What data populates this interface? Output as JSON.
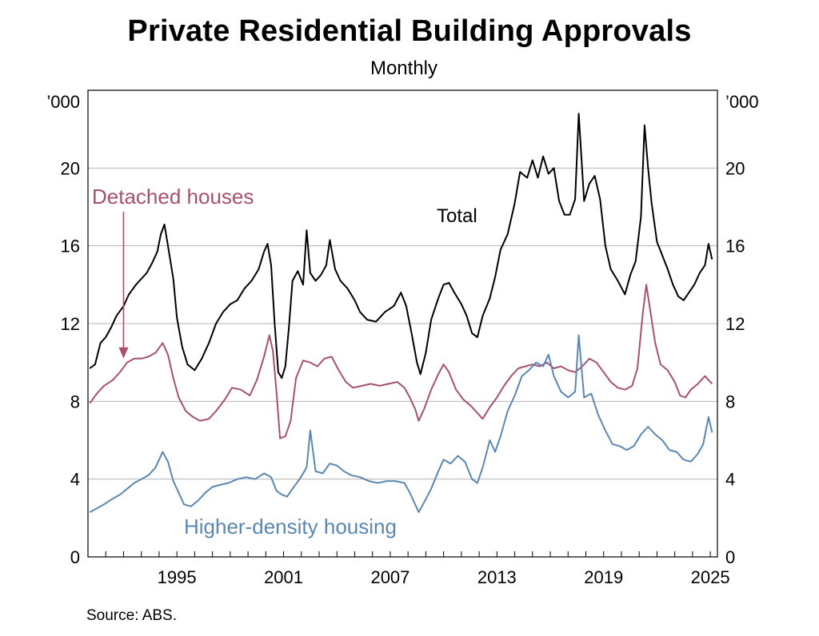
{
  "chart_data": {
    "type": "line",
    "title": "Private Residential Building Approvals",
    "subtitle": "Monthly",
    "unit_left": "’000",
    "unit_right": "’000",
    "source": "Source:   ABS.",
    "x_range": [
      1990.0,
      2025.4
    ],
    "x_ticks": [
      "1995",
      "2001",
      "2007",
      "2013",
      "2019",
      "2025"
    ],
    "ylim": [
      0,
      24
    ],
    "y_ticks": [
      0,
      4,
      8,
      12,
      16,
      20
    ],
    "grid": true,
    "legend": "inline labels",
    "annotations": [
      {
        "text": "Detached houses",
        "series": "Detached houses",
        "arrow_to": [
          1992.0,
          10.2
        ]
      },
      {
        "text": "Total",
        "series": "Total"
      },
      {
        "text": "Higher-density housing",
        "series": "Higher-density housing"
      }
    ],
    "series": [
      {
        "name": "Total",
        "color": "#000000",
        "points": [
          [
            1990.1,
            9.7
          ],
          [
            1990.4,
            9.9
          ],
          [
            1990.7,
            11.0
          ],
          [
            1991.0,
            11.3
          ],
          [
            1991.3,
            11.8
          ],
          [
            1991.6,
            12.4
          ],
          [
            1992.0,
            12.9
          ],
          [
            1992.3,
            13.5
          ],
          [
            1992.7,
            14.0
          ],
          [
            1993.0,
            14.3
          ],
          [
            1993.3,
            14.6
          ],
          [
            1993.6,
            15.1
          ],
          [
            1993.9,
            15.7
          ],
          [
            1994.1,
            16.6
          ],
          [
            1994.3,
            17.1
          ],
          [
            1994.5,
            16.0
          ],
          [
            1994.8,
            14.3
          ],
          [
            1995.0,
            12.3
          ],
          [
            1995.3,
            10.8
          ],
          [
            1995.6,
            9.9
          ],
          [
            1996.0,
            9.6
          ],
          [
            1996.4,
            10.2
          ],
          [
            1996.8,
            11.0
          ],
          [
            1997.2,
            12.0
          ],
          [
            1997.6,
            12.6
          ],
          [
            1998.0,
            13.0
          ],
          [
            1998.4,
            13.2
          ],
          [
            1998.8,
            13.8
          ],
          [
            1999.2,
            14.2
          ],
          [
            1999.6,
            14.8
          ],
          [
            1999.9,
            15.7
          ],
          [
            2000.1,
            16.1
          ],
          [
            2000.3,
            15.0
          ],
          [
            2000.5,
            12.0
          ],
          [
            2000.7,
            9.5
          ],
          [
            2000.9,
            9.2
          ],
          [
            2001.1,
            9.8
          ],
          [
            2001.3,
            11.8
          ],
          [
            2001.5,
            14.2
          ],
          [
            2001.8,
            14.7
          ],
          [
            2002.1,
            14.0
          ],
          [
            2002.3,
            16.8
          ],
          [
            2002.5,
            14.6
          ],
          [
            2002.8,
            14.2
          ],
          [
            2003.1,
            14.5
          ],
          [
            2003.4,
            15.0
          ],
          [
            2003.6,
            16.3
          ],
          [
            2003.9,
            14.8
          ],
          [
            2004.2,
            14.2
          ],
          [
            2004.6,
            13.8
          ],
          [
            2005.0,
            13.2
          ],
          [
            2005.3,
            12.6
          ],
          [
            2005.7,
            12.2
          ],
          [
            2006.2,
            12.1
          ],
          [
            2006.7,
            12.6
          ],
          [
            2007.2,
            12.9
          ],
          [
            2007.6,
            13.6
          ],
          [
            2007.9,
            12.9
          ],
          [
            2008.2,
            11.5
          ],
          [
            2008.5,
            10.0
          ],
          [
            2008.7,
            9.4
          ],
          [
            2009.0,
            10.5
          ],
          [
            2009.3,
            12.2
          ],
          [
            2009.7,
            13.3
          ],
          [
            2010.0,
            14.0
          ],
          [
            2010.3,
            14.1
          ],
          [
            2010.6,
            13.6
          ],
          [
            2011.0,
            13.0
          ],
          [
            2011.3,
            12.4
          ],
          [
            2011.6,
            11.5
          ],
          [
            2011.9,
            11.3
          ],
          [
            2012.2,
            12.4
          ],
          [
            2012.6,
            13.3
          ],
          [
            2012.9,
            14.4
          ],
          [
            2013.2,
            15.8
          ],
          [
            2013.6,
            16.6
          ],
          [
            2014.0,
            18.2
          ],
          [
            2014.3,
            19.8
          ],
          [
            2014.7,
            19.5
          ],
          [
            2015.0,
            20.4
          ],
          [
            2015.3,
            19.5
          ],
          [
            2015.6,
            20.6
          ],
          [
            2015.9,
            19.7
          ],
          [
            2016.2,
            20.0
          ],
          [
            2016.5,
            18.3
          ],
          [
            2016.8,
            17.6
          ],
          [
            2017.1,
            17.6
          ],
          [
            2017.4,
            18.4
          ],
          [
            2017.6,
            22.8
          ],
          [
            2017.9,
            18.3
          ],
          [
            2018.2,
            19.2
          ],
          [
            2018.5,
            19.6
          ],
          [
            2018.8,
            18.4
          ],
          [
            2019.1,
            16.0
          ],
          [
            2019.4,
            14.8
          ],
          [
            2019.8,
            14.2
          ],
          [
            2020.2,
            13.5
          ],
          [
            2020.5,
            14.5
          ],
          [
            2020.8,
            15.2
          ],
          [
            2021.1,
            17.5
          ],
          [
            2021.3,
            22.2
          ],
          [
            2021.5,
            20.0
          ],
          [
            2021.7,
            18.2
          ],
          [
            2022.0,
            16.2
          ],
          [
            2022.3,
            15.5
          ],
          [
            2022.6,
            14.8
          ],
          [
            2022.9,
            14.0
          ],
          [
            2023.2,
            13.4
          ],
          [
            2023.5,
            13.2
          ],
          [
            2023.8,
            13.6
          ],
          [
            2024.1,
            14.0
          ],
          [
            2024.4,
            14.6
          ],
          [
            2024.7,
            15.0
          ],
          [
            2024.9,
            16.1
          ],
          [
            2025.1,
            15.3
          ]
        ]
      },
      {
        "name": "Detached houses",
        "color": "#a8516e",
        "points": [
          [
            1990.1,
            7.9
          ],
          [
            1990.5,
            8.4
          ],
          [
            1990.9,
            8.8
          ],
          [
            1991.4,
            9.1
          ],
          [
            1991.8,
            9.5
          ],
          [
            1992.2,
            10.0
          ],
          [
            1992.6,
            10.2
          ],
          [
            1993.0,
            10.2
          ],
          [
            1993.4,
            10.3
          ],
          [
            1993.8,
            10.5
          ],
          [
            1994.2,
            11.0
          ],
          [
            1994.5,
            10.4
          ],
          [
            1994.8,
            9.2
          ],
          [
            1995.1,
            8.2
          ],
          [
            1995.5,
            7.5
          ],
          [
            1995.9,
            7.2
          ],
          [
            1996.3,
            7.0
          ],
          [
            1996.8,
            7.1
          ],
          [
            1997.2,
            7.5
          ],
          [
            1997.7,
            8.1
          ],
          [
            1998.1,
            8.7
          ],
          [
            1998.6,
            8.6
          ],
          [
            1999.1,
            8.3
          ],
          [
            1999.5,
            9.1
          ],
          [
            1999.9,
            10.3
          ],
          [
            2000.2,
            11.4
          ],
          [
            2000.4,
            10.6
          ],
          [
            2000.6,
            8.5
          ],
          [
            2000.8,
            6.1
          ],
          [
            2001.1,
            6.2
          ],
          [
            2001.4,
            7.0
          ],
          [
            2001.7,
            9.2
          ],
          [
            2002.1,
            10.1
          ],
          [
            2002.5,
            10.0
          ],
          [
            2002.9,
            9.8
          ],
          [
            2003.3,
            10.2
          ],
          [
            2003.7,
            10.3
          ],
          [
            2004.1,
            9.6
          ],
          [
            2004.5,
            9.0
          ],
          [
            2004.9,
            8.7
          ],
          [
            2005.4,
            8.8
          ],
          [
            2005.9,
            8.9
          ],
          [
            2006.4,
            8.8
          ],
          [
            2006.9,
            8.9
          ],
          [
            2007.4,
            9.0
          ],
          [
            2007.8,
            8.7
          ],
          [
            2008.1,
            8.2
          ],
          [
            2008.4,
            7.6
          ],
          [
            2008.6,
            7.0
          ],
          [
            2008.9,
            7.6
          ],
          [
            2009.3,
            8.6
          ],
          [
            2009.7,
            9.4
          ],
          [
            2010.0,
            9.9
          ],
          [
            2010.3,
            9.5
          ],
          [
            2010.7,
            8.6
          ],
          [
            2011.1,
            8.1
          ],
          [
            2011.5,
            7.8
          ],
          [
            2011.9,
            7.4
          ],
          [
            2012.2,
            7.1
          ],
          [
            2012.6,
            7.7
          ],
          [
            2013.0,
            8.2
          ],
          [
            2013.4,
            8.8
          ],
          [
            2013.8,
            9.3
          ],
          [
            2014.2,
            9.7
          ],
          [
            2014.6,
            9.8
          ],
          [
            2015.0,
            9.9
          ],
          [
            2015.4,
            9.8
          ],
          [
            2015.8,
            10.0
          ],
          [
            2016.2,
            9.7
          ],
          [
            2016.6,
            9.8
          ],
          [
            2017.0,
            9.6
          ],
          [
            2017.4,
            9.5
          ],
          [
            2017.8,
            9.8
          ],
          [
            2018.2,
            10.2
          ],
          [
            2018.6,
            10.0
          ],
          [
            2019.0,
            9.5
          ],
          [
            2019.4,
            9.0
          ],
          [
            2019.8,
            8.7
          ],
          [
            2020.2,
            8.6
          ],
          [
            2020.6,
            8.8
          ],
          [
            2020.9,
            9.7
          ],
          [
            2021.2,
            12.5
          ],
          [
            2021.4,
            14.0
          ],
          [
            2021.6,
            12.8
          ],
          [
            2021.9,
            11.0
          ],
          [
            2022.2,
            9.9
          ],
          [
            2022.6,
            9.6
          ],
          [
            2023.0,
            9.0
          ],
          [
            2023.3,
            8.3
          ],
          [
            2023.6,
            8.2
          ],
          [
            2023.9,
            8.6
          ],
          [
            2024.3,
            8.9
          ],
          [
            2024.7,
            9.3
          ],
          [
            2025.1,
            8.9
          ]
        ]
      },
      {
        "name": "Higher-density housing",
        "color": "#5b87b3",
        "points": [
          [
            1990.1,
            2.3
          ],
          [
            1990.5,
            2.5
          ],
          [
            1990.9,
            2.7
          ],
          [
            1991.4,
            3.0
          ],
          [
            1991.8,
            3.2
          ],
          [
            1992.2,
            3.5
          ],
          [
            1992.6,
            3.8
          ],
          [
            1993.0,
            4.0
          ],
          [
            1993.4,
            4.2
          ],
          [
            1993.8,
            4.6
          ],
          [
            1994.2,
            5.4
          ],
          [
            1994.5,
            4.9
          ],
          [
            1994.8,
            3.9
          ],
          [
            1995.1,
            3.3
          ],
          [
            1995.4,
            2.7
          ],
          [
            1995.8,
            2.6
          ],
          [
            1996.2,
            2.9
          ],
          [
            1996.6,
            3.3
          ],
          [
            1997.0,
            3.6
          ],
          [
            1997.4,
            3.7
          ],
          [
            1997.9,
            3.8
          ],
          [
            1998.4,
            4.0
          ],
          [
            1998.9,
            4.1
          ],
          [
            1999.4,
            4.0
          ],
          [
            1999.9,
            4.3
          ],
          [
            2000.3,
            4.1
          ],
          [
            2000.6,
            3.4
          ],
          [
            2000.9,
            3.2
          ],
          [
            2001.2,
            3.1
          ],
          [
            2001.5,
            3.5
          ],
          [
            2001.9,
            4.0
          ],
          [
            2002.3,
            4.6
          ],
          [
            2002.5,
            6.5
          ],
          [
            2002.8,
            4.4
          ],
          [
            2003.2,
            4.3
          ],
          [
            2003.6,
            4.8
          ],
          [
            2004.0,
            4.7
          ],
          [
            2004.4,
            4.4
          ],
          [
            2004.8,
            4.2
          ],
          [
            2005.3,
            4.1
          ],
          [
            2005.8,
            3.9
          ],
          [
            2006.3,
            3.8
          ],
          [
            2006.8,
            3.9
          ],
          [
            2007.3,
            3.9
          ],
          [
            2007.8,
            3.8
          ],
          [
            2008.1,
            3.3
          ],
          [
            2008.4,
            2.7
          ],
          [
            2008.6,
            2.3
          ],
          [
            2008.9,
            2.8
          ],
          [
            2009.3,
            3.5
          ],
          [
            2009.7,
            4.4
          ],
          [
            2010.0,
            5.0
          ],
          [
            2010.4,
            4.8
          ],
          [
            2010.8,
            5.2
          ],
          [
            2011.2,
            4.9
          ],
          [
            2011.6,
            4.0
          ],
          [
            2011.9,
            3.8
          ],
          [
            2012.2,
            4.6
          ],
          [
            2012.6,
            6.0
          ],
          [
            2012.9,
            5.4
          ],
          [
            2013.2,
            6.2
          ],
          [
            2013.6,
            7.5
          ],
          [
            2014.0,
            8.3
          ],
          [
            2014.4,
            9.3
          ],
          [
            2014.8,
            9.6
          ],
          [
            2015.2,
            10.0
          ],
          [
            2015.6,
            9.8
          ],
          [
            2015.9,
            10.4
          ],
          [
            2016.2,
            9.3
          ],
          [
            2016.6,
            8.5
          ],
          [
            2017.0,
            8.2
          ],
          [
            2017.4,
            8.5
          ],
          [
            2017.6,
            11.4
          ],
          [
            2017.9,
            8.2
          ],
          [
            2018.3,
            8.4
          ],
          [
            2018.7,
            7.3
          ],
          [
            2019.1,
            6.5
          ],
          [
            2019.5,
            5.8
          ],
          [
            2019.9,
            5.7
          ],
          [
            2020.3,
            5.5
          ],
          [
            2020.7,
            5.7
          ],
          [
            2021.1,
            6.3
          ],
          [
            2021.5,
            6.7
          ],
          [
            2021.9,
            6.3
          ],
          [
            2022.3,
            6.0
          ],
          [
            2022.7,
            5.5
          ],
          [
            2023.1,
            5.4
          ],
          [
            2023.5,
            5.0
          ],
          [
            2023.9,
            4.9
          ],
          [
            2024.3,
            5.3
          ],
          [
            2024.6,
            5.8
          ],
          [
            2024.9,
            7.2
          ],
          [
            2025.1,
            6.4
          ]
        ]
      }
    ]
  }
}
